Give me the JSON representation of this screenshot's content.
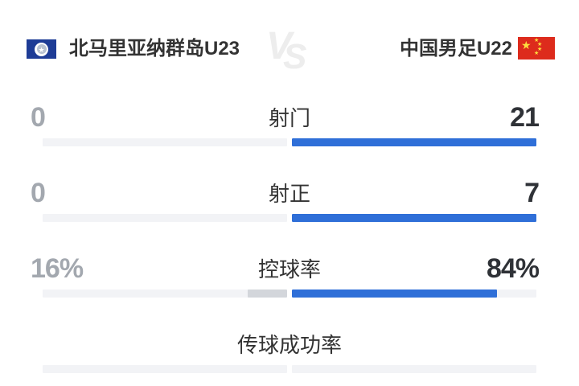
{
  "header": {
    "home": {
      "name": "北马里亚纳群岛U23"
    },
    "away": {
      "name": "中国男足U22"
    },
    "vs_v": "V",
    "vs_s": "S",
    "home_flag_icon": "northern-mariana-islands-flag",
    "away_flag_icon": "china-flag",
    "star_glyph": "★"
  },
  "stats": [
    {
      "label": "射门",
      "home_value": "0",
      "away_value": "21",
      "home_fill": 0,
      "away_fill": 1
    },
    {
      "label": "射正",
      "home_value": "0",
      "away_value": "7",
      "home_fill": 0,
      "away_fill": 1
    },
    {
      "label": "控球率",
      "home_value": "16%",
      "away_value": "84%",
      "home_fill": 0.16,
      "away_fill": 0.84
    },
    {
      "label": "传球成功率",
      "home_value": "",
      "away_value": "",
      "home_fill": 0,
      "away_fill": 0
    }
  ],
  "colors": {
    "away_bar": "#2f6fd8",
    "home_bar_fill": "#d3d6db",
    "bar_track": "#f2f3f6",
    "home_value_text": "#a3a8af",
    "away_value_text": "#2f3237",
    "label_text": "#333333",
    "vs_text": "#ededed",
    "home_flag_blue": "#1e3c96",
    "away_flag_red": "#dd2b1c",
    "star_yellow": "#fcdf3e"
  },
  "chart_data": {
    "type": "bar",
    "title": "北马里亚纳群岛U23 vs 中国男足U22",
    "orientation": "horizontal-split-comparison",
    "categories": [
      "射门",
      "射正",
      "控球率",
      "传球成功率"
    ],
    "series": [
      {
        "name": "北马里亚纳群岛U23",
        "values": [
          0,
          0,
          16,
          null
        ],
        "display": [
          "0",
          "0",
          "16%",
          ""
        ]
      },
      {
        "name": "中国男足U22",
        "values": [
          21,
          7,
          84,
          null
        ],
        "display": [
          "21",
          "7",
          "84%",
          ""
        ]
      }
    ],
    "legend_position": "top",
    "grid": false,
    "bar_scale": "each side of row is half-width; fill fraction = value share per team side"
  }
}
